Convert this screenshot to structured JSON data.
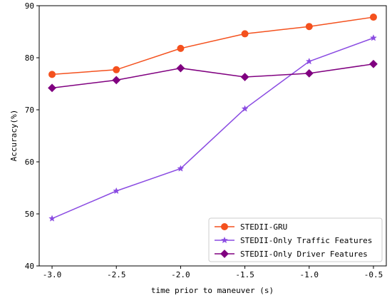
{
  "chart_data": {
    "type": "line",
    "title": "",
    "xlabel": "time prior to maneuver (s)",
    "ylabel": "Accuracy(%)",
    "x": [
      -3.0,
      -2.5,
      -2.0,
      -1.5,
      -1.0,
      -0.5
    ],
    "xticks": [
      "-3.0",
      "-2.5",
      "-2.0",
      "-1.5",
      "-1.0",
      "-0.5"
    ],
    "yticks": [
      "40",
      "50",
      "60",
      "70",
      "80",
      "90"
    ],
    "xlim": [
      -3.1,
      -0.4
    ],
    "ylim": [
      40,
      90
    ],
    "grid": false,
    "legend_position": "bottom-right",
    "series": [
      {
        "name": "STEDII-GRU",
        "color": "#f4511e",
        "marker": "circle",
        "values": [
          76.8,
          77.7,
          81.8,
          84.6,
          86.0,
          87.8
        ]
      },
      {
        "name": "STEDII-Only Traffic Features",
        "color": "#8a4be2",
        "marker": "star",
        "values": [
          49.1,
          54.4,
          58.7,
          70.2,
          79.3,
          83.8
        ]
      },
      {
        "name": "STEDII-Only Driver Features",
        "color": "#800080",
        "marker": "diamond",
        "values": [
          74.2,
          75.7,
          78.0,
          76.3,
          77.0,
          78.8
        ]
      }
    ]
  }
}
